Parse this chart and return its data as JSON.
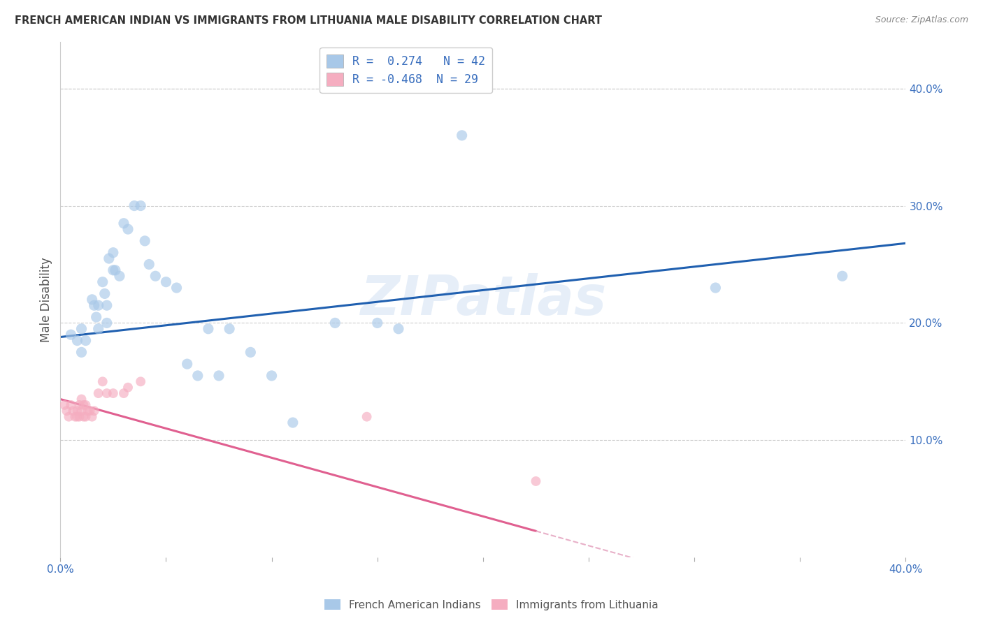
{
  "title": "FRENCH AMERICAN INDIAN VS IMMIGRANTS FROM LITHUANIA MALE DISABILITY CORRELATION CHART",
  "source": "Source: ZipAtlas.com",
  "ylabel": "Male Disability",
  "xlim": [
    0.0,
    0.4
  ],
  "ylim": [
    0.0,
    0.44
  ],
  "y_ticks_right": [
    0.1,
    0.2,
    0.3,
    0.4
  ],
  "y_tick_right_labels": [
    "10.0%",
    "20.0%",
    "30.0%",
    "40.0%"
  ],
  "blue_color": "#a8c8e8",
  "pink_color": "#f5adc0",
  "blue_line_color": "#2060b0",
  "pink_line_color": "#e06090",
  "pink_dash_color": "#e8b0c8",
  "watermark": "ZIPatlas",
  "legend_R_blue": "0.274",
  "legend_N_blue": "42",
  "legend_R_pink": "-0.468",
  "legend_N_pink": "29",
  "blue_x": [
    0.005,
    0.008,
    0.01,
    0.01,
    0.012,
    0.015,
    0.016,
    0.017,
    0.018,
    0.018,
    0.02,
    0.021,
    0.022,
    0.022,
    0.023,
    0.025,
    0.025,
    0.026,
    0.028,
    0.03,
    0.032,
    0.035,
    0.038,
    0.04,
    0.042,
    0.045,
    0.05,
    0.055,
    0.06,
    0.065,
    0.07,
    0.075,
    0.08,
    0.09,
    0.1,
    0.11,
    0.13,
    0.15,
    0.16,
    0.19,
    0.31,
    0.37
  ],
  "blue_y": [
    0.19,
    0.185,
    0.195,
    0.175,
    0.185,
    0.22,
    0.215,
    0.205,
    0.215,
    0.195,
    0.235,
    0.225,
    0.215,
    0.2,
    0.255,
    0.26,
    0.245,
    0.245,
    0.24,
    0.285,
    0.28,
    0.3,
    0.3,
    0.27,
    0.25,
    0.24,
    0.235,
    0.23,
    0.165,
    0.155,
    0.195,
    0.155,
    0.195,
    0.175,
    0.155,
    0.115,
    0.2,
    0.2,
    0.195,
    0.36,
    0.23,
    0.24
  ],
  "pink_x": [
    0.002,
    0.003,
    0.004,
    0.005,
    0.006,
    0.007,
    0.008,
    0.008,
    0.009,
    0.009,
    0.01,
    0.01,
    0.011,
    0.011,
    0.012,
    0.012,
    0.013,
    0.014,
    0.015,
    0.016,
    0.018,
    0.02,
    0.022,
    0.025,
    0.03,
    0.032,
    0.038,
    0.145,
    0.225
  ],
  "pink_y": [
    0.13,
    0.125,
    0.12,
    0.13,
    0.125,
    0.12,
    0.125,
    0.12,
    0.13,
    0.12,
    0.135,
    0.125,
    0.13,
    0.12,
    0.13,
    0.12,
    0.125,
    0.125,
    0.12,
    0.125,
    0.14,
    0.15,
    0.14,
    0.14,
    0.14,
    0.145,
    0.15,
    0.12,
    0.065
  ],
  "blue_scatter_size": 120,
  "pink_scatter_size": 100,
  "blue_scatter_alpha": 0.65,
  "pink_scatter_alpha": 0.65,
  "background_color": "#ffffff",
  "grid_color": "#cccccc",
  "blue_intercept": 0.188,
  "blue_slope": 0.2,
  "pink_intercept": 0.135,
  "pink_slope": -0.5
}
